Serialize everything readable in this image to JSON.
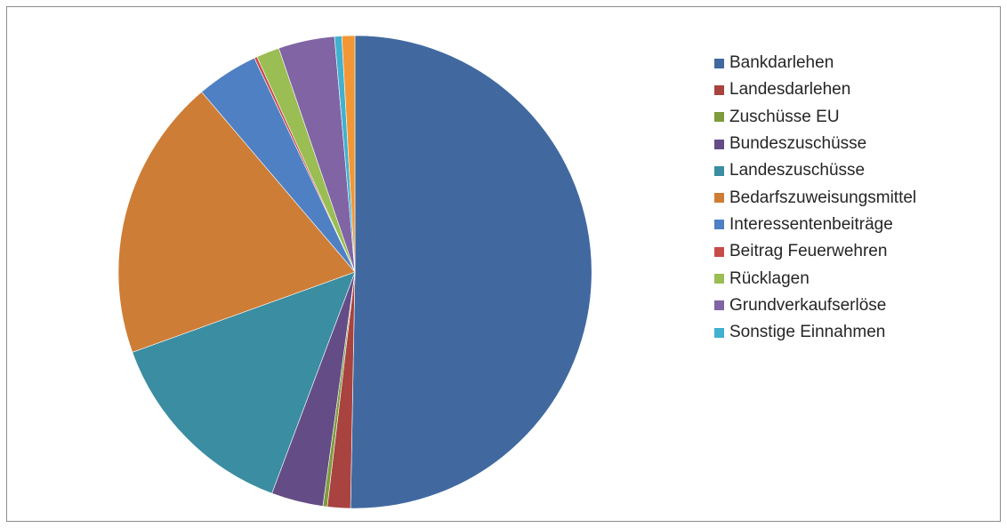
{
  "chart_data": {
    "type": "pie",
    "title": "",
    "legend_position": "right",
    "start_angle_deg": 0,
    "direction": "clockwise",
    "slices": [
      {
        "label": "Bankdarlehen",
        "value": 51.1,
        "color": "#4169a0"
      },
      {
        "label": "Landesdarlehen",
        "value": 1.6,
        "color": "#a84340"
      },
      {
        "label": "Zuschüsse EU",
        "value": 0.3,
        "color": "#7e9c3c"
      },
      {
        "label": "Bundeszuschüsse",
        "value": 3.6,
        "color": "#644c86"
      },
      {
        "label": "Landeszuschüsse",
        "value": 14.0,
        "color": "#3b8da1"
      },
      {
        "label": "Bedarfszuweisungsmittel",
        "value": 19.6,
        "color": "#ce7d36"
      },
      {
        "label": "Interessentenbeiträge",
        "value": 4.3,
        "color": "#4f80c3"
      },
      {
        "label": "Beitrag Feuerwehren",
        "value": 0.2,
        "color": "#c84c4a"
      },
      {
        "label": "Rücklagen",
        "value": 1.6,
        "color": "#9abd54"
      },
      {
        "label": "Grundverkaufserlöse",
        "value": 3.9,
        "color": "#8064a3"
      },
      {
        "label": "Sonstige Einnahmen",
        "value": 0.5,
        "color": "#40b1cf"
      },
      {
        "label": "",
        "value": 0.9,
        "color": "#f39736"
      }
    ]
  }
}
